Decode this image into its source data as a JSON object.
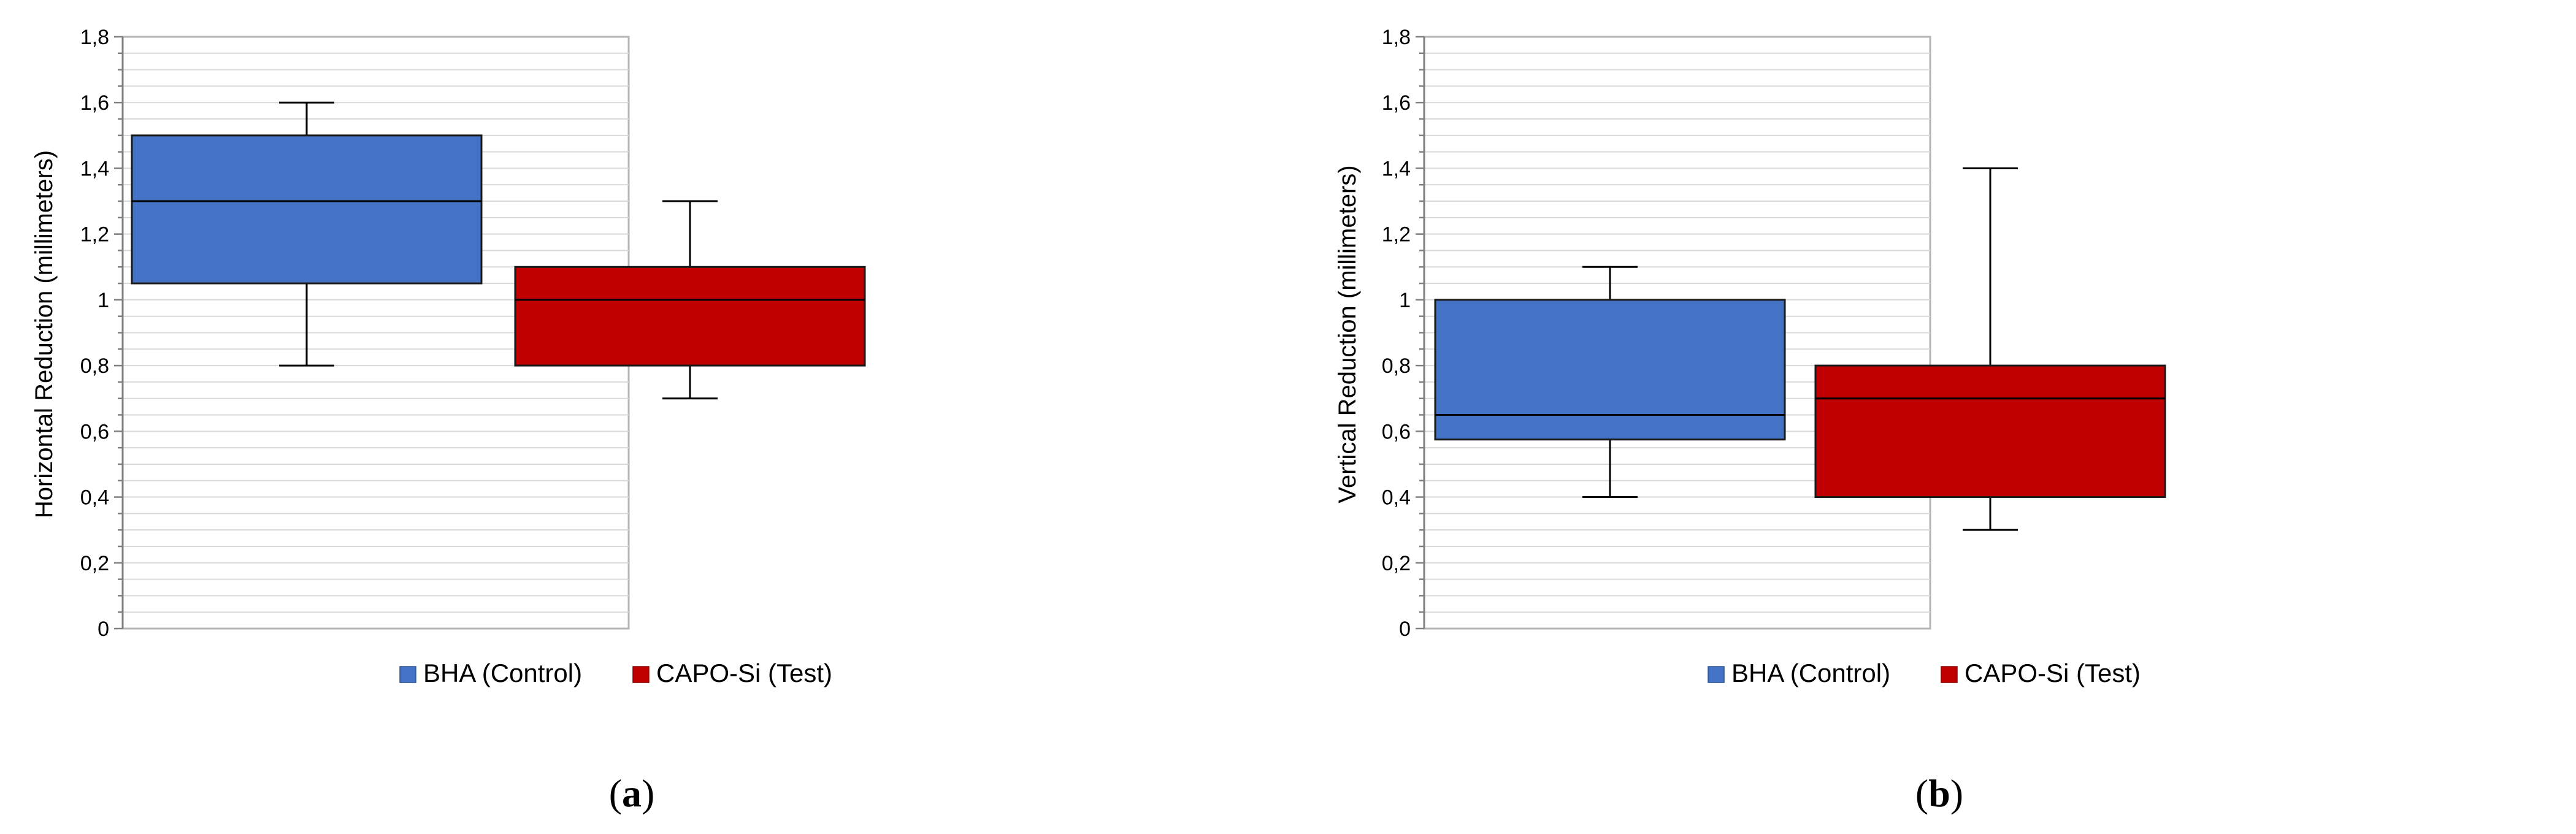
{
  "chart_data": [
    {
      "type": "box",
      "caption": "(a)",
      "ylabel": "Horizontal Reduction (millimeters)",
      "ylim": [
        0,
        1.8
      ],
      "yticks": [
        "0",
        "0,2",
        "0,4",
        "0,6",
        "0,8",
        "1",
        "1,2",
        "1,4",
        "1,6",
        "1,8"
      ],
      "grid": true,
      "legend_position": "bottom",
      "series": [
        {
          "name": "BHA (Control)",
          "color": "#4472C4",
          "min": 0.8,
          "q1": 1.05,
          "median": 1.3,
          "q3": 1.5,
          "max": 1.6
        },
        {
          "name": "CAPO-Si (Test)",
          "color": "#C00000",
          "min": 0.7,
          "q1": 0.8,
          "median": 1.0,
          "q3": 1.1,
          "max": 1.3
        }
      ]
    },
    {
      "type": "box",
      "caption": "(b)",
      "ylabel": "Vertical Reduction (millimeters)",
      "ylim": [
        0,
        1.8
      ],
      "yticks": [
        "0",
        "0,2",
        "0,4",
        "0,6",
        "0,8",
        "1",
        "1,2",
        "1,4",
        "1,6",
        "1,8"
      ],
      "grid": true,
      "legend_position": "bottom",
      "series": [
        {
          "name": "BHA (Control)",
          "color": "#4472C4",
          "min": 0.4,
          "q1": 0.575,
          "median": 0.65,
          "q3": 1.0,
          "max": 1.1
        },
        {
          "name": "CAPO-Si (Test)",
          "color": "#C00000",
          "min": 0.3,
          "q1": 0.4,
          "median": 0.7,
          "q3": 0.8,
          "max": 1.4
        }
      ]
    }
  ]
}
